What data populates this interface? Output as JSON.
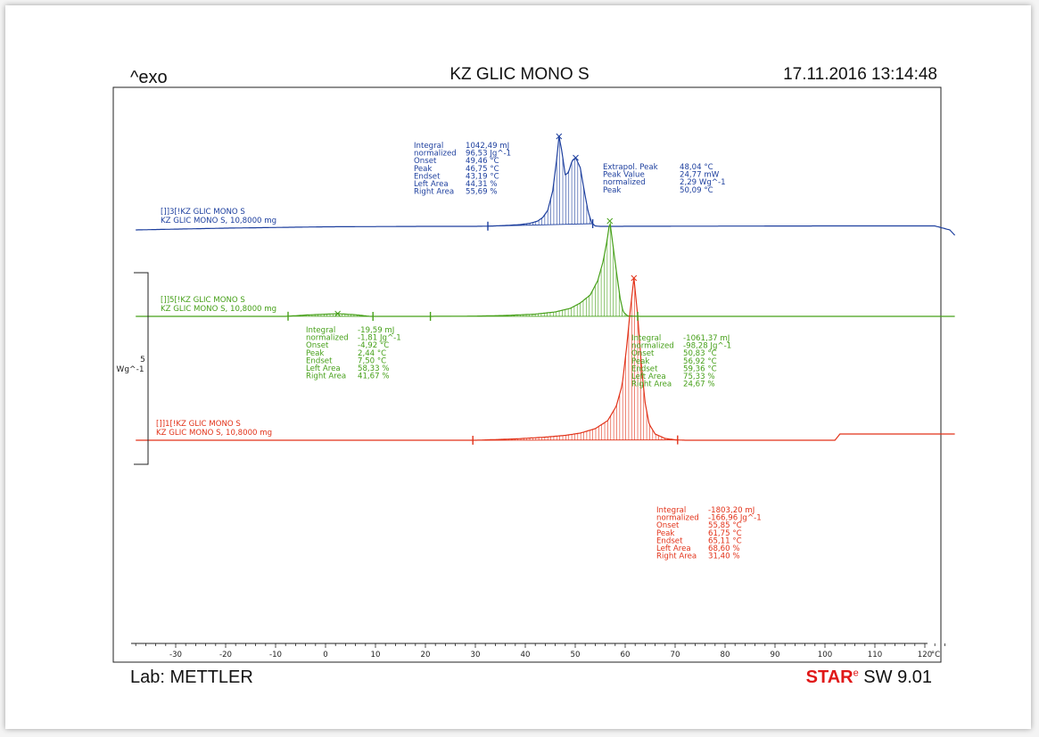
{
  "header": {
    "exo": "^exo",
    "title": "KZ GLIC MONO S",
    "datetime": "17.11.2016 13:14:48"
  },
  "footer": {
    "lab": "Lab: METTLER",
    "sw_star_s": "S",
    "sw_star_tar": "TAR",
    "sw_star_e": "e",
    "sw_version": "SW 9.01"
  },
  "scale": {
    "value": "5",
    "unit": "Wg^-1"
  },
  "colors": {
    "blue": "#1d3f9e",
    "green": "#46a019",
    "red": "#e23219"
  },
  "chart_data": {
    "type": "line",
    "xlabel": "°C",
    "xlim": [
      -38,
      126
    ],
    "xticks": [
      -30,
      -20,
      -10,
      0,
      10,
      20,
      30,
      40,
      50,
      60,
      70,
      80,
      90,
      100,
      110,
      120
    ],
    "series": [
      {
        "key": "blue",
        "label1": "[]]3[!KZ GLIC MONO S",
        "label2": "KZ GLIC MONO S, 10,8000 mg",
        "baseline_y": 254,
        "curve": [
          [
            -38,
            -4
          ],
          [
            -20,
            -2
          ],
          [
            0,
            -0.5
          ],
          [
            20,
            0
          ],
          [
            30,
            0
          ],
          [
            33,
            0.3
          ],
          [
            36,
            1
          ],
          [
            39,
            2
          ],
          [
            41,
            3.5
          ],
          [
            42.5,
            6
          ],
          [
            43.5,
            10
          ],
          [
            44.5,
            18
          ],
          [
            45.5,
            40
          ],
          [
            46.3,
            76
          ],
          [
            46.75,
            101
          ],
          [
            47.3,
            85
          ],
          [
            48,
            58
          ],
          [
            48.6,
            60
          ],
          [
            49.4,
            74
          ],
          [
            50.09,
            77
          ],
          [
            51,
            66
          ],
          [
            51.8,
            40
          ],
          [
            52.6,
            16
          ],
          [
            53.3,
            4
          ],
          [
            54,
            0.5
          ],
          [
            55,
            0
          ],
          [
            102,
            0.5
          ],
          [
            122,
            0.5
          ],
          [
            125,
            -4
          ],
          [
            126,
            -10
          ]
        ],
        "markers_x": [
          32.5,
          53.5
        ],
        "ann": [
          {
            "x": 464,
            "y": 166,
            "labels": [
              "Integral",
              "  normalized",
              "Onset",
              "Peak",
              "Endset",
              "Left Area",
              "Right Area"
            ],
            "values": [
              "1042,49 mJ",
              "96,53 Jg^-1",
              "49,46 °C",
              "46,75 °C",
              "43,19 °C",
              "44,31 %",
              "55,69 %"
            ]
          },
          {
            "x": 676,
            "y": 190,
            "labels": [
              "Extrapol. Peak",
              "Peak Value",
              "  normalized",
              "Peak"
            ],
            "values": [
              "48,04 °C",
              "24,77 mW",
              "2,29 Wg^-1",
              "50,09 °C"
            ]
          }
        ]
      },
      {
        "key": "green",
        "label1": "[]]5[!KZ GLIC MONO S",
        "label2": "KZ GLIC MONO S, 10,8000 mg",
        "baseline_y": 355,
        "curve": [
          [
            -38,
            0
          ],
          [
            -8,
            0
          ],
          [
            -4,
            1.5
          ],
          [
            2.44,
            3
          ],
          [
            6,
            1.8
          ],
          [
            9,
            0
          ],
          [
            20,
            0
          ],
          [
            30,
            0.3
          ],
          [
            36,
            1
          ],
          [
            42,
            2.5
          ],
          [
            46,
            5
          ],
          [
            49,
            9
          ],
          [
            51,
            15
          ],
          [
            53,
            24
          ],
          [
            54.5,
            40
          ],
          [
            55.6,
            62
          ],
          [
            56.4,
            86
          ],
          [
            56.92,
            107
          ],
          [
            57.5,
            82
          ],
          [
            58.3,
            48
          ],
          [
            59,
            20
          ],
          [
            59.6,
            5
          ],
          [
            60.5,
            0.5
          ],
          [
            63,
            0
          ],
          [
            126,
            0
          ]
        ],
        "markers_x": [
          -7.5,
          9.5,
          21,
          62.5
        ],
        "ann": [
          {
            "x": 343,
            "y": 373,
            "labels": [
              "Integral",
              "  normalized",
              "Onset",
              "Peak",
              "Endset",
              "Left Area",
              "Right Area"
            ],
            "values": [
              "-19,59 mJ",
              "-1,81 Jg^-1",
              "-4,92 °C",
              "2,44 °C",
              "7,50 °C",
              "58,33 %",
              "41,67 %"
            ]
          },
          {
            "x": 708,
            "y": 382,
            "labels": [
              "Integral",
              "  normalized",
              "Onset",
              "Peak",
              "Endset",
              "Left Area",
              "Right Area"
            ],
            "values": [
              "-1061,37 mJ",
              "-98,28 Jg^-1",
              "50,83 °C",
              "56,92 °C",
              "59,36 °C",
              "75,33 %",
              "24,67 %"
            ]
          }
        ]
      },
      {
        "key": "red",
        "label1": "[]]1[!KZ GLIC MONO S",
        "label2": "KZ GLIC MONO S, 10,8000 mg",
        "baseline_y": 494,
        "curve": [
          [
            -38,
            0
          ],
          [
            30,
            0
          ],
          [
            38,
            1.5
          ],
          [
            44,
            3.5
          ],
          [
            48,
            5.5
          ],
          [
            51,
            8
          ],
          [
            54,
            13
          ],
          [
            56.5,
            22
          ],
          [
            58.2,
            38
          ],
          [
            59.4,
            62
          ],
          [
            60.3,
            105
          ],
          [
            61,
            145
          ],
          [
            61.75,
            182
          ],
          [
            62.5,
            140
          ],
          [
            63.3,
            80
          ],
          [
            64,
            42
          ],
          [
            64.8,
            18
          ],
          [
            66,
            7
          ],
          [
            68,
            2
          ],
          [
            70,
            0.5
          ],
          [
            72,
            0
          ],
          [
            102,
            0
          ],
          [
            103,
            7
          ],
          [
            110,
            7
          ],
          [
            126,
            7
          ]
        ],
        "markers_x": [
          29.5,
          70.5
        ],
        "ann": [
          {
            "x": 736,
            "y": 575,
            "labels": [
              "Integral",
              "  normalized",
              "Onset",
              "Peak",
              "Endset",
              "Left Area",
              "Right Area"
            ],
            "values": [
              "-1803,20 mJ",
              "-166,96 Jg^-1",
              "55,85 °C",
              "61,75 °C",
              "65,11 °C",
              "68,60 %",
              "31,40 %"
            ]
          }
        ]
      }
    ],
    "peaks": [
      {
        "series": "blue",
        "x": 46.75
      },
      {
        "series": "blue",
        "x": 50.09
      },
      {
        "series": "green",
        "x": 2.44
      },
      {
        "series": "green",
        "x": 56.92
      },
      {
        "series": "red",
        "x": 61.75
      }
    ],
    "fills": [
      {
        "series": "blue",
        "x1": 32.5,
        "x2": 53.5,
        "sign": -1
      },
      {
        "series": "green",
        "x1": -7.5,
        "x2": 9.5,
        "sign": 1
      },
      {
        "series": "green",
        "x1": 21,
        "x2": 62.5,
        "sign": 1
      },
      {
        "series": "red",
        "x1": 29.5,
        "x2": 70.5,
        "sign": 1
      }
    ]
  }
}
